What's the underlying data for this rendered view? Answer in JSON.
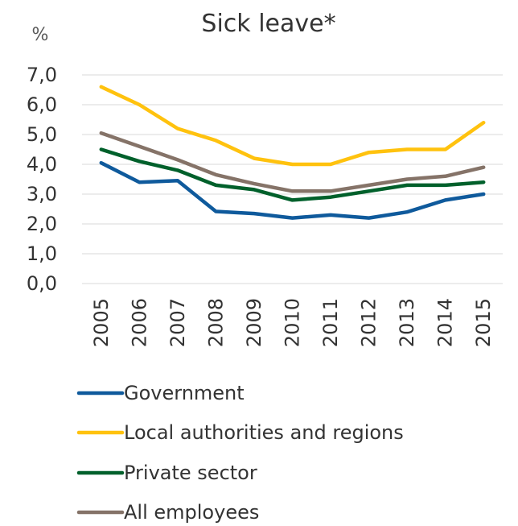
{
  "chart_data": {
    "type": "line",
    "title": "Sick leave*",
    "unit_label": "%",
    "xlabel": "",
    "ylabel": "",
    "categories": [
      "2005",
      "2006",
      "2007",
      "2008",
      "2009",
      "2010",
      "2011",
      "2012",
      "2013",
      "2014",
      "2015"
    ],
    "ylim": [
      0,
      7
    ],
    "yticks": [
      "0,0",
      "1,0",
      "2,0",
      "3,0",
      "4,0",
      "5,0",
      "6,0",
      "7,0"
    ],
    "grid": true,
    "legend_position": "bottom",
    "series": [
      {
        "name": "Government",
        "color": "#0f5a9c",
        "values": [
          4.05,
          3.4,
          3.45,
          2.42,
          2.35,
          2.2,
          2.3,
          2.2,
          2.4,
          2.8,
          3.0
        ]
      },
      {
        "name": "Local authorities and regions",
        "color": "#ffc20e",
        "values": [
          6.6,
          6.0,
          5.2,
          4.8,
          4.2,
          4.0,
          4.0,
          4.4,
          4.5,
          4.5,
          5.4
        ]
      },
      {
        "name": "Private sector",
        "color": "#00602b",
        "values": [
          4.5,
          4.1,
          3.8,
          3.3,
          3.15,
          2.8,
          2.9,
          3.1,
          3.3,
          3.3,
          3.4
        ]
      },
      {
        "name": "All employees",
        "color": "#857368",
        "values": [
          5.05,
          4.6,
          4.15,
          3.65,
          3.35,
          3.1,
          3.1,
          3.3,
          3.5,
          3.6,
          3.9
        ]
      }
    ]
  }
}
